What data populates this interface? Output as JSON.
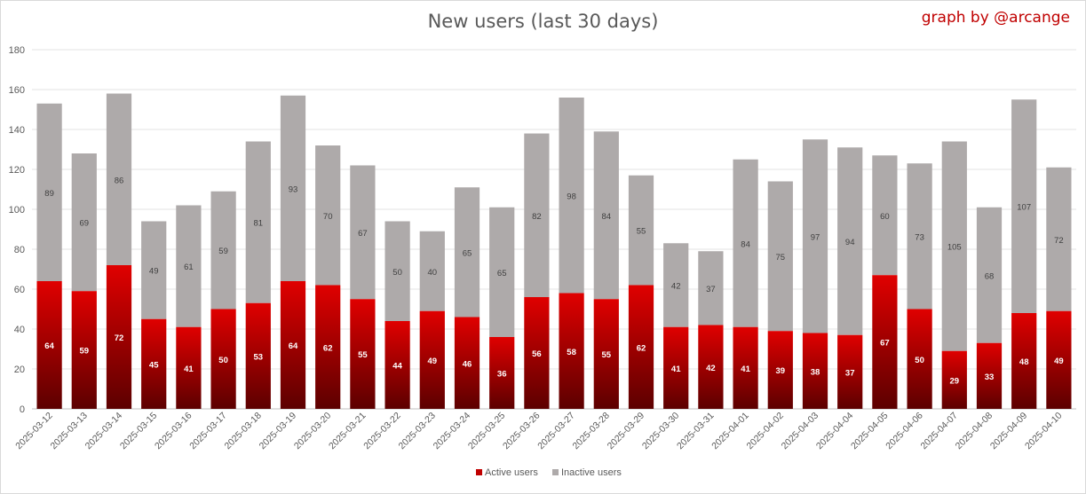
{
  "title": "New users (last 30 days)",
  "credit": "graph by @arcange",
  "chart_data": {
    "type": "bar",
    "stacked": true,
    "title": "New users (last 30 days)",
    "xlabel": "",
    "ylabel": "",
    "ylim": [
      0,
      180
    ],
    "yticks": [
      0,
      20,
      40,
      60,
      80,
      100,
      120,
      140,
      160,
      180
    ],
    "grid": true,
    "legend_position": "bottom",
    "categories": [
      "2025-03-12",
      "2025-03-13",
      "2025-03-14",
      "2025-03-15",
      "2025-03-16",
      "2025-03-17",
      "2025-03-18",
      "2025-03-19",
      "2025-03-20",
      "2025-03-21",
      "2025-03-22",
      "2025-03-23",
      "2025-03-24",
      "2025-03-25",
      "2025-03-26",
      "2025-03-27",
      "2025-03-28",
      "2025-03-29",
      "2025-03-30",
      "2025-03-31",
      "2025-04-01",
      "2025-04-02",
      "2025-04-03",
      "2025-04-04",
      "2025-04-05",
      "2025-04-06",
      "2025-04-07",
      "2025-04-08",
      "2025-04-09",
      "2025-04-10"
    ],
    "series": [
      {
        "name": "Active users",
        "color": "#c00000",
        "values": [
          64,
          59,
          72,
          45,
          41,
          50,
          53,
          64,
          62,
          55,
          44,
          49,
          46,
          36,
          56,
          58,
          55,
          62,
          41,
          42,
          41,
          39,
          38,
          37,
          67,
          50,
          29,
          33,
          48,
          49
        ]
      },
      {
        "name": "Inactive users",
        "color": "#aeaaaa",
        "values": [
          89,
          69,
          86,
          49,
          61,
          59,
          81,
          93,
          70,
          67,
          50,
          40,
          65,
          65,
          82,
          98,
          84,
          55,
          42,
          37,
          84,
          75,
          97,
          94,
          60,
          73,
          105,
          68,
          107,
          72
        ]
      }
    ]
  }
}
